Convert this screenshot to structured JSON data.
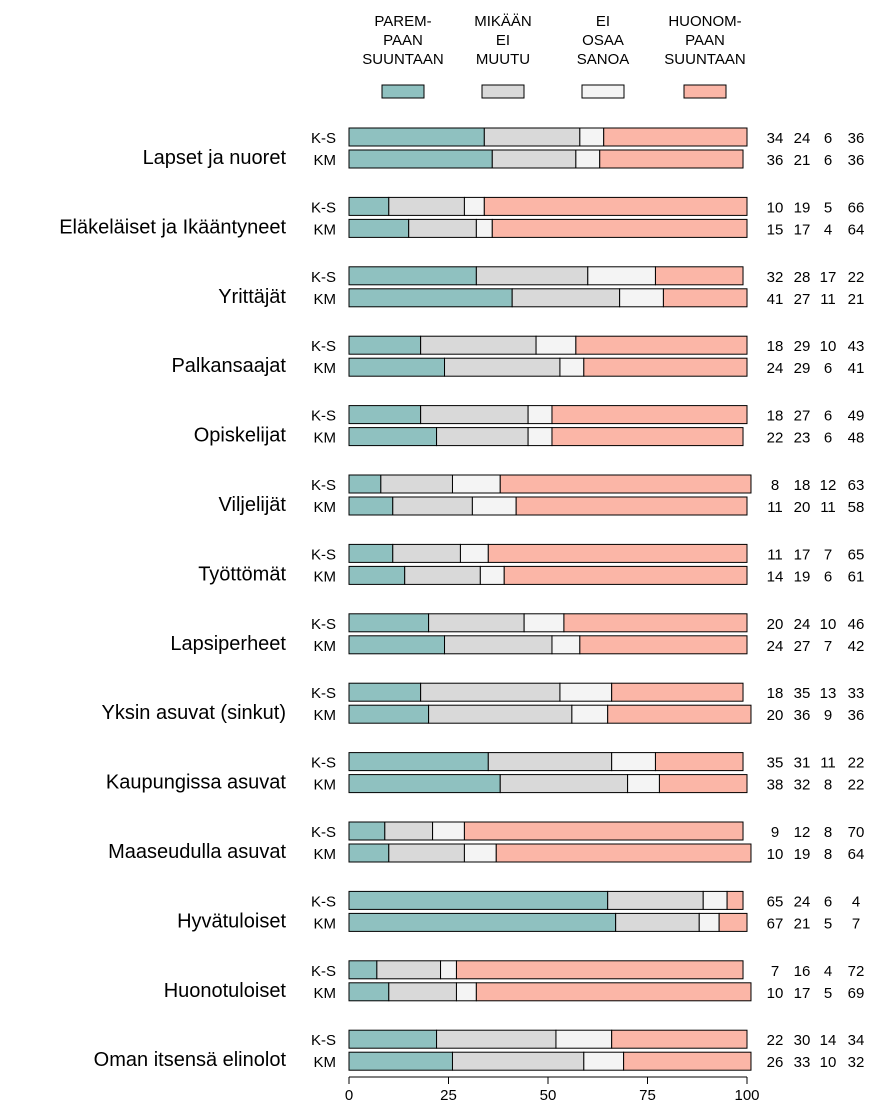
{
  "chart_data": {
    "type": "bar",
    "orientation": "horizontal",
    "stacked": true,
    "xlim": [
      0,
      100
    ],
    "x_ticks": [
      "0",
      "25",
      "50",
      "75",
      "100"
    ],
    "grid": false,
    "legend_position": "top",
    "legend": [
      {
        "label": [
          "PAREM-",
          "PAAN",
          "SUUNTAAN"
        ],
        "color": "#8fc1c0"
      },
      {
        "label": [
          "MIKÄÄN",
          "EI",
          "MUUTU"
        ],
        "color": "#d9d9d9"
      },
      {
        "label": [
          "EI",
          "OSAA",
          "SANOA"
        ],
        "color": "#f4f4f4"
      },
      {
        "label": [
          "HUONOM-",
          "PAAN",
          "SUUNTAAN"
        ],
        "color": "#fbb6a7"
      }
    ],
    "groups": [
      {
        "name": "Lapset ja nuoret",
        "rows": [
          {
            "label": "K-S",
            "values": [
              34,
              24,
              6,
              36
            ]
          },
          {
            "label": "KM",
            "values": [
              36,
              21,
              6,
              36
            ]
          }
        ]
      },
      {
        "name": "Eläkeläiset ja Ikääntyneet",
        "rows": [
          {
            "label": "K-S",
            "values": [
              10,
              19,
              5,
              66
            ]
          },
          {
            "label": "KM",
            "values": [
              15,
              17,
              4,
              64
            ]
          }
        ]
      },
      {
        "name": "Yrittäjät",
        "rows": [
          {
            "label": "K-S",
            "values": [
              32,
              28,
              17,
              22
            ]
          },
          {
            "label": "KM",
            "values": [
              41,
              27,
              11,
              21
            ]
          }
        ]
      },
      {
        "name": "Palkansaajat",
        "rows": [
          {
            "label": "K-S",
            "values": [
              18,
              29,
              10,
              43
            ]
          },
          {
            "label": "KM",
            "values": [
              24,
              29,
              6,
              41
            ]
          }
        ]
      },
      {
        "name": "Opiskelijat",
        "rows": [
          {
            "label": "K-S",
            "values": [
              18,
              27,
              6,
              49
            ]
          },
          {
            "label": "KM",
            "values": [
              22,
              23,
              6,
              48
            ]
          }
        ]
      },
      {
        "name": "Viljelijät",
        "rows": [
          {
            "label": "K-S",
            "values": [
              8,
              18,
              12,
              63
            ]
          },
          {
            "label": "KM",
            "values": [
              11,
              20,
              11,
              58
            ]
          }
        ]
      },
      {
        "name": "Työttömät",
        "rows": [
          {
            "label": "K-S",
            "values": [
              11,
              17,
              7,
              65
            ]
          },
          {
            "label": "KM",
            "values": [
              14,
              19,
              6,
              61
            ]
          }
        ]
      },
      {
        "name": "Lapsiperheet",
        "rows": [
          {
            "label": "K-S",
            "values": [
              20,
              24,
              10,
              46
            ]
          },
          {
            "label": "KM",
            "values": [
              24,
              27,
              7,
              42
            ]
          }
        ]
      },
      {
        "name": "Yksin asuvat (sinkut)",
        "rows": [
          {
            "label": "K-S",
            "values": [
              18,
              35,
              13,
              33
            ]
          },
          {
            "label": "KM",
            "values": [
              20,
              36,
              9,
              36
            ]
          }
        ]
      },
      {
        "name": "Kaupungissa asuvat",
        "rows": [
          {
            "label": "K-S",
            "values": [
              35,
              31,
              11,
              22
            ]
          },
          {
            "label": "KM",
            "values": [
              38,
              32,
              8,
              22
            ]
          }
        ]
      },
      {
        "name": "Maaseudulla asuvat",
        "rows": [
          {
            "label": "K-S",
            "values": [
              9,
              12,
              8,
              70
            ]
          },
          {
            "label": "KM",
            "values": [
              10,
              19,
              8,
              64
            ]
          }
        ]
      },
      {
        "name": "Hyvätuloiset",
        "rows": [
          {
            "label": "K-S",
            "values": [
              65,
              24,
              6,
              4
            ]
          },
          {
            "label": "KM",
            "values": [
              67,
              21,
              5,
              7
            ]
          }
        ]
      },
      {
        "name": "Huonotuloiset",
        "rows": [
          {
            "label": "K-S",
            "values": [
              7,
              16,
              4,
              72
            ]
          },
          {
            "label": "KM",
            "values": [
              10,
              17,
              5,
              69
            ]
          }
        ]
      },
      {
        "name": "Oman itsensä elinolot",
        "rows": [
          {
            "label": "K-S",
            "values": [
              22,
              30,
              14,
              34
            ]
          },
          {
            "label": "KM",
            "values": [
              26,
              33,
              10,
              32
            ]
          }
        ]
      }
    ]
  }
}
